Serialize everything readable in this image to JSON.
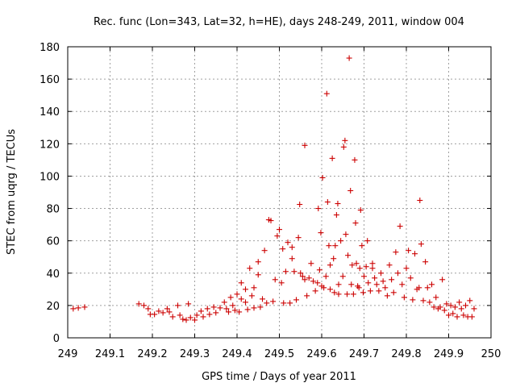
{
  "chart_data": {
    "type": "scatter",
    "title": "Rec. func (Lon=343, Lat=32, h=HE), days 248-249, 2011, window 004",
    "xlabel": "GPS time / Days of year 2011",
    "ylabel": "STEC from uqrg / TECUs",
    "xlim": [
      249,
      250
    ],
    "ylim": [
      0,
      180
    ],
    "xticks": [
      "249",
      "249.1",
      "249.2",
      "249.3",
      "249.4",
      "249.5",
      "249.6",
      "249.7",
      "249.8",
      "249.9",
      "250"
    ],
    "xtick_values": [
      249,
      249.1,
      249.2,
      249.3,
      249.4,
      249.5,
      249.6,
      249.7,
      249.8,
      249.9,
      250
    ],
    "yticks": [
      "0",
      "20",
      "40",
      "60",
      "80",
      "100",
      "120",
      "140",
      "160",
      "180"
    ],
    "ytick_values": [
      0,
      20,
      40,
      60,
      80,
      100,
      120,
      140,
      160,
      180
    ],
    "grid": true,
    "marker": "+",
    "color": "#cc0000",
    "series": [
      {
        "points": [
          [
            249.013,
            18
          ],
          [
            249.025,
            18.5
          ],
          [
            249.04,
            19
          ],
          [
            249.168,
            21
          ],
          [
            249.18,
            20
          ],
          [
            249.19,
            18
          ],
          [
            249.195,
            14.5
          ],
          [
            249.205,
            14.5
          ],
          [
            249.215,
            16.5
          ],
          [
            249.225,
            15.5
          ],
          [
            249.235,
            18
          ],
          [
            249.24,
            16
          ],
          [
            249.248,
            13
          ],
          [
            249.26,
            20
          ],
          [
            249.265,
            14
          ],
          [
            249.272,
            11.5
          ],
          [
            249.28,
            11
          ],
          [
            249.285,
            21
          ],
          [
            249.29,
            12.5
          ],
          [
            249.3,
            11
          ],
          [
            249.305,
            14
          ],
          [
            249.315,
            16.5
          ],
          [
            249.32,
            13
          ],
          [
            249.33,
            18
          ],
          [
            249.335,
            14.5
          ],
          [
            249.345,
            19
          ],
          [
            249.35,
            15.5
          ],
          [
            249.36,
            18.5
          ],
          [
            249.37,
            22
          ],
          [
            249.375,
            18
          ],
          [
            249.38,
            16
          ],
          [
            249.385,
            25
          ],
          [
            249.39,
            20
          ],
          [
            249.395,
            17
          ],
          [
            249.4,
            27
          ],
          [
            249.405,
            16
          ],
          [
            249.41,
            24
          ],
          [
            249.41,
            34
          ],
          [
            249.42,
            22
          ],
          [
            249.42,
            30
          ],
          [
            249.425,
            17.5
          ],
          [
            249.43,
            43
          ],
          [
            249.435,
            26
          ],
          [
            249.44,
            18.5
          ],
          [
            249.44,
            31
          ],
          [
            249.45,
            39
          ],
          [
            249.45,
            47
          ],
          [
            249.455,
            19
          ],
          [
            249.46,
            24
          ],
          [
            249.465,
            54
          ],
          [
            249.47,
            21.5
          ],
          [
            249.475,
            73
          ],
          [
            249.48,
            72.5
          ],
          [
            249.485,
            22.5
          ],
          [
            249.49,
            36
          ],
          [
            249.495,
            63
          ],
          [
            249.5,
            67
          ],
          [
            249.505,
            34
          ],
          [
            249.508,
            55
          ],
          [
            249.51,
            21.5
          ],
          [
            249.515,
            41
          ],
          [
            249.52,
            59
          ],
          [
            249.525,
            21.5
          ],
          [
            249.53,
            49
          ],
          [
            249.53,
            56
          ],
          [
            249.535,
            41
          ],
          [
            249.54,
            23.5
          ],
          [
            249.545,
            62
          ],
          [
            249.548,
            82.5
          ],
          [
            249.55,
            40
          ],
          [
            249.555,
            38
          ],
          [
            249.56,
            119
          ],
          [
            249.56,
            36
          ],
          [
            249.565,
            26
          ],
          [
            249.57,
            37
          ],
          [
            249.575,
            46
          ],
          [
            249.58,
            35
          ],
          [
            249.585,
            29
          ],
          [
            249.59,
            34
          ],
          [
            249.592,
            80
          ],
          [
            249.595,
            42
          ],
          [
            249.598,
            65
          ],
          [
            249.6,
            32
          ],
          [
            249.602,
            99
          ],
          [
            249.605,
            31
          ],
          [
            249.61,
            38
          ],
          [
            249.612,
            151
          ],
          [
            249.614,
            84
          ],
          [
            249.617,
            57
          ],
          [
            249.62,
            45
          ],
          [
            249.62,
            30
          ],
          [
            249.625,
            111
          ],
          [
            249.628,
            49
          ],
          [
            249.63,
            28
          ],
          [
            249.632,
            57
          ],
          [
            249.635,
            76
          ],
          [
            249.638,
            83
          ],
          [
            249.64,
            33
          ],
          [
            249.64,
            27
          ],
          [
            249.645,
            60
          ],
          [
            249.65,
            38
          ],
          [
            249.652,
            118
          ],
          [
            249.655,
            122
          ],
          [
            249.657,
            64
          ],
          [
            249.66,
            27
          ],
          [
            249.662,
            51
          ],
          [
            249.665,
            173
          ],
          [
            249.668,
            91
          ],
          [
            249.67,
            33
          ],
          [
            249.672,
            45
          ],
          [
            249.675,
            27
          ],
          [
            249.678,
            110
          ],
          [
            249.68,
            71
          ],
          [
            249.682,
            46
          ],
          [
            249.685,
            32
          ],
          [
            249.688,
            31
          ],
          [
            249.69,
            43
          ],
          [
            249.692,
            79
          ],
          [
            249.695,
            57
          ],
          [
            249.698,
            28
          ],
          [
            249.7,
            38
          ],
          [
            249.705,
            44
          ],
          [
            249.708,
            60
          ],
          [
            249.71,
            34
          ],
          [
            249.715,
            29
          ],
          [
            249.72,
            43
          ],
          [
            249.72,
            46
          ],
          [
            249.725,
            37
          ],
          [
            249.73,
            33
          ],
          [
            249.735,
            29
          ],
          [
            249.74,
            40
          ],
          [
            249.745,
            35
          ],
          [
            249.75,
            31
          ],
          [
            249.755,
            26
          ],
          [
            249.76,
            45
          ],
          [
            249.765,
            36
          ],
          [
            249.77,
            28
          ],
          [
            249.775,
            53
          ],
          [
            249.78,
            40
          ],
          [
            249.785,
            69
          ],
          [
            249.79,
            33
          ],
          [
            249.795,
            25
          ],
          [
            249.8,
            43
          ],
          [
            249.805,
            54
          ],
          [
            249.81,
            37
          ],
          [
            249.815,
            23.5
          ],
          [
            249.82,
            52
          ],
          [
            249.825,
            30
          ],
          [
            249.83,
            31
          ],
          [
            249.832,
            85
          ],
          [
            249.835,
            58
          ],
          [
            249.84,
            23
          ],
          [
            249.845,
            47
          ],
          [
            249.85,
            31
          ],
          [
            249.855,
            22
          ],
          [
            249.86,
            33
          ],
          [
            249.865,
            19
          ],
          [
            249.87,
            25
          ],
          [
            249.875,
            18
          ],
          [
            249.88,
            19
          ],
          [
            249.885,
            36
          ],
          [
            249.89,
            17
          ],
          [
            249.895,
            21
          ],
          [
            249.9,
            14
          ],
          [
            249.905,
            20
          ],
          [
            249.91,
            15
          ],
          [
            249.915,
            19
          ],
          [
            249.92,
            13
          ],
          [
            249.925,
            22
          ],
          [
            249.93,
            18
          ],
          [
            249.935,
            14
          ],
          [
            249.94,
            20
          ],
          [
            249.945,
            13
          ],
          [
            249.95,
            23
          ],
          [
            249.955,
            13
          ],
          [
            249.96,
            18
          ]
        ]
      }
    ]
  }
}
